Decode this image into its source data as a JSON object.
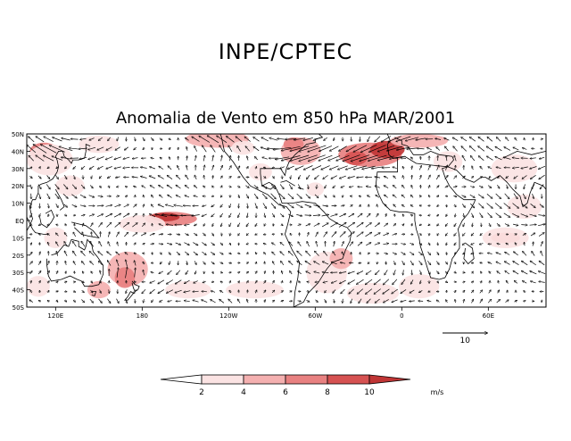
{
  "header": {
    "organization": "INPE/CPTEC",
    "title": "Anomalia de Vento em 850 hPa MAR/2001"
  },
  "map": {
    "lat_labels": [
      "50N",
      "40N",
      "30N",
      "20N",
      "10N",
      "EQ",
      "10S",
      "20S",
      "30S",
      "40S",
      "50S"
    ],
    "lon_labels": [
      "120E",
      "180",
      "120W",
      "60W",
      "0",
      "60E"
    ],
    "lon_range_deg": [
      100,
      460
    ],
    "lat_range_deg": [
      -50,
      50
    ]
  },
  "reference_vector": {
    "label": "10",
    "speed": 10
  },
  "colorbar": {
    "ticks": [
      "2",
      "4",
      "6",
      "8",
      "10"
    ],
    "units": "m/s",
    "colors": [
      "#ffffff",
      "#fbe3e3",
      "#f4b0b0",
      "#e88181",
      "#d65252",
      "#c03535"
    ]
  },
  "wind": {
    "anomaly_regions": [
      {
        "lon": 290,
        "lat": 40,
        "speed": 10,
        "dir_deg": 200
      },
      {
        "lon": 338,
        "lat": 37,
        "speed": 11,
        "dir_deg": 195
      },
      {
        "lon": 360,
        "lat": 45,
        "speed": 8,
        "dir_deg": 190
      },
      {
        "lon": 200,
        "lat": 2,
        "speed": 9,
        "dir_deg": 180
      },
      {
        "lon": 170,
        "lat": -30,
        "speed": 8,
        "dir_deg": 60
      },
      {
        "lon": 115,
        "lat": 40,
        "speed": 7,
        "dir_deg": 150
      },
      {
        "lon": 225,
        "lat": 47,
        "speed": 6,
        "dir_deg": 160
      }
    ]
  }
}
